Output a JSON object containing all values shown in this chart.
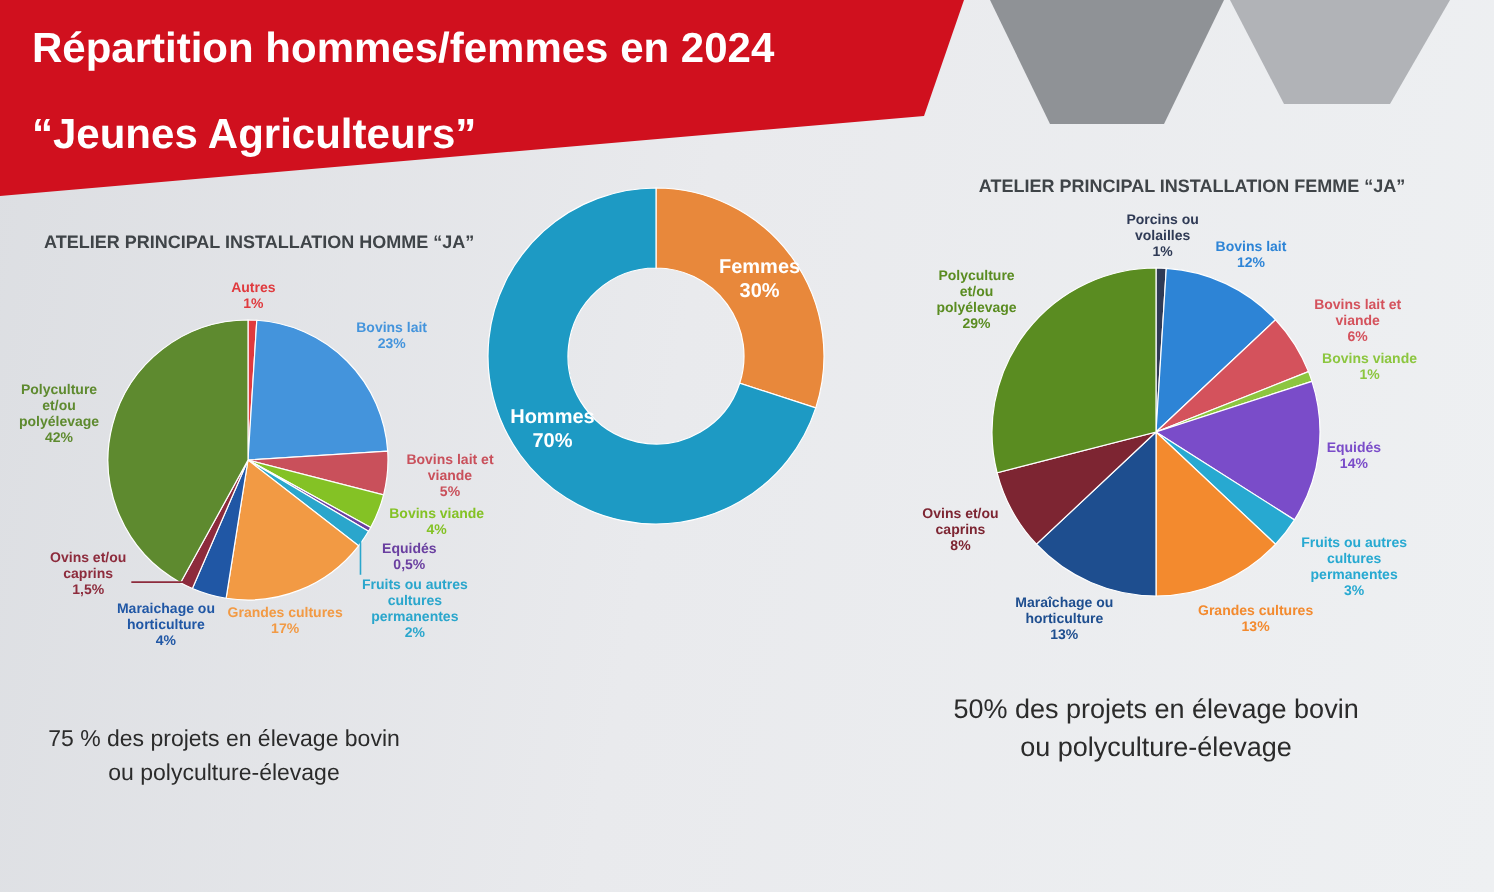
{
  "chart_data": [
    {
      "type": "pie",
      "title": "ATELIER PRINCIPAL INSTALLATION HOMME “JA”",
      "categories": [
        "Autres",
        "Bovins lait",
        "Bovins lait et viande",
        "Bovins viande",
        "Equidés",
        "Fruits ou autres cultures permanentes",
        "Grandes cultures",
        "Maraichage ou horticulture",
        "Ovins et/ou caprins",
        "Polyculture et/ou polyélevage"
      ],
      "values": [
        1,
        23,
        5,
        4,
        0.5,
        2,
        17,
        4,
        1.5,
        42
      ],
      "value_labels": [
        "1%",
        "23%",
        "5%",
        "4%",
        "0,5%",
        "2%",
        "17%",
        "4%",
        "1,5%",
        "42%"
      ],
      "colors": [
        "#e03a3e",
        "#4494dc",
        "#c9505b",
        "#84c225",
        "#6a3fa0",
        "#2aa6cc",
        "#f29a44",
        "#2057a5",
        "#8d2b3c",
        "#5e8a2f"
      ],
      "annotations": [
        "75 % des projets en élevage bovin ou polyculture-élevage"
      ]
    },
    {
      "type": "donut",
      "title": "Répartition hommes/femmes en 2024",
      "subtitle": "“Jeunes Agriculteurs”",
      "categories": [
        "Femmes",
        "Hommes"
      ],
      "values": [
        30,
        70
      ],
      "value_labels": [
        "30%",
        "70%"
      ],
      "colors": [
        "#e8883b",
        "#1d9ac4"
      ]
    },
    {
      "type": "pie",
      "title": "ATELIER PRINCIPAL INSTALLATION FEMME “JA”",
      "categories": [
        "Porcins ou volailles",
        "Bovins lait",
        "Bovins lait et viande",
        "Bovins viande",
        "Equidés",
        "Fruits ou autres cultures permanentes",
        "Grandes cultures",
        "Maraîchage ou horticulture",
        "Ovins et/ou caprins",
        "Polyculture et/ou polyélevage"
      ],
      "values": [
        1,
        12,
        6,
        1,
        14,
        3,
        13,
        13,
        8,
        29
      ],
      "value_labels": [
        "1%",
        "12%",
        "6%",
        "1%",
        "14%",
        "3%",
        "13%",
        "13%",
        "8%",
        "29%"
      ],
      "colors": [
        "#2f3a55",
        "#2d84d6",
        "#d4525c",
        "#8cc63f",
        "#7a4cc9",
        "#27a9d1",
        "#f38a2e",
        "#1e4e8f",
        "#7d2532",
        "#5a8c21"
      ],
      "annotations": [
        "50% des projets en élevage bovin ou polyculture-élevage"
      ]
    }
  ]
}
